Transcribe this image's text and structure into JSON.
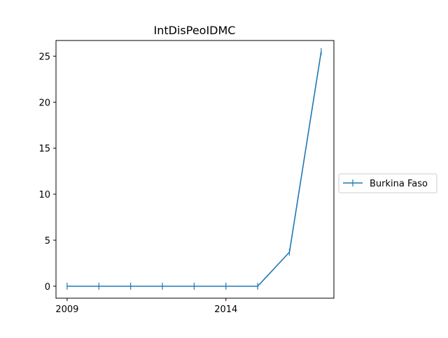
{
  "chart_data": {
    "type": "line",
    "title": "IntDisPeoIDMC",
    "xlabel": "",
    "ylabel": "",
    "x": [
      2009,
      2010,
      2011,
      2012,
      2013,
      2014,
      2015,
      2016,
      2017
    ],
    "x_ticks": [
      2009,
      2014
    ],
    "x_tick_labels": [
      "2009",
      "2014"
    ],
    "xlim": [
      2008.65,
      2017.4
    ],
    "y_ticks": [
      0,
      5,
      10,
      15,
      20,
      25
    ],
    "y_tick_labels": [
      "0",
      "5",
      "10",
      "15",
      "20",
      "25"
    ],
    "ylim": [
      -1.3,
      26.7
    ],
    "grid": false,
    "legend_position": "right",
    "series": [
      {
        "name": "Burkina Faso",
        "color": "#1f77b4",
        "marker": "vertical-tick",
        "values": [
          0,
          0,
          0,
          0,
          0,
          0,
          0,
          3.7,
          25.5
        ]
      }
    ]
  }
}
